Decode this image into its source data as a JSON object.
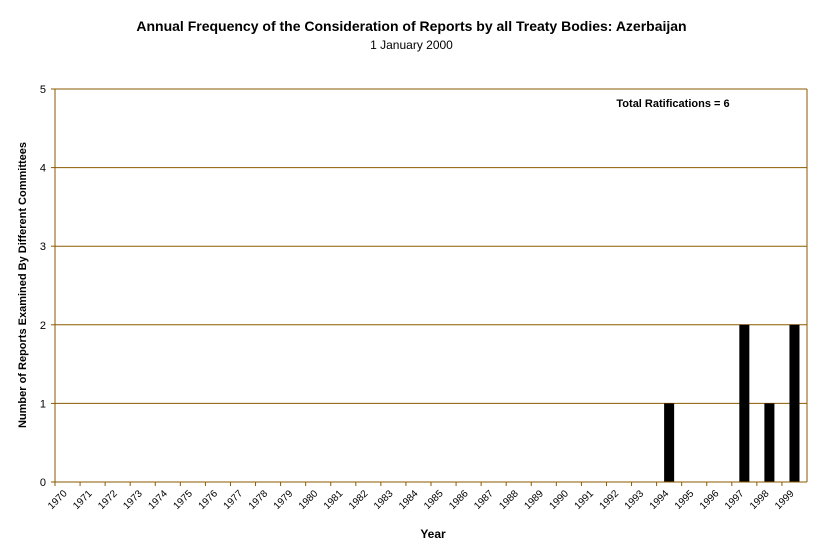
{
  "chart_data": {
    "type": "bar",
    "title": "Annual Frequency of the Consideration of Reports by all Treaty Bodies: Azerbaijan",
    "subtitle": "1 January 2000",
    "xlabel": "Year",
    "ylabel": "Number of Reports Examined By Different Committees",
    "annotation": "Total Ratifications = 6",
    "ylim": [
      0,
      5
    ],
    "yticks": [
      0,
      1,
      2,
      3,
      4,
      5
    ],
    "grid": true,
    "legend": "none",
    "categories": [
      "1970",
      "1971",
      "1972",
      "1973",
      "1974",
      "1975",
      "1976",
      "1977",
      "1978",
      "1979",
      "1980",
      "1981",
      "1982",
      "1983",
      "1984",
      "1985",
      "1986",
      "1987",
      "1988",
      "1989",
      "1990",
      "1991",
      "1992",
      "1993",
      "1994",
      "1995",
      "1996",
      "1997",
      "1998",
      "1999"
    ],
    "values": [
      0,
      0,
      0,
      0,
      0,
      0,
      0,
      0,
      0,
      0,
      0,
      0,
      0,
      0,
      0,
      0,
      0,
      0,
      0,
      0,
      0,
      0,
      0,
      0,
      1,
      0,
      0,
      2,
      1,
      2
    ],
    "colors": {
      "bar": "#000000",
      "grid": "#8B5A00",
      "axis": "#8B5A00",
      "tick_text": "#000000"
    }
  }
}
